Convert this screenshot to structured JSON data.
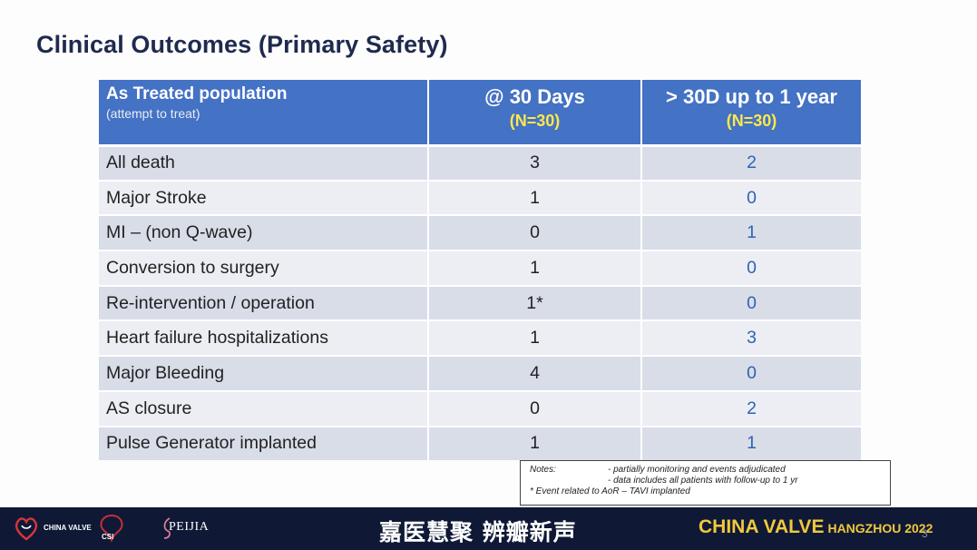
{
  "slide": {
    "title": "Clinical Outcomes (Primary Safety)",
    "page_number": "3"
  },
  "table": {
    "header": {
      "label_main": "As Treated population",
      "label_sub": "(attempt to treat)",
      "col_30d_main": "@ 30 Days",
      "col_30d_n": "(N=30)",
      "col_1y_main": "> 30D up to 1 year",
      "col_1y_n": "(N=30)"
    },
    "rows": [
      {
        "label": "All death",
        "d30": "3",
        "y1": "2"
      },
      {
        "label": "Major Stroke",
        "d30": "1",
        "y1": "0"
      },
      {
        "label": "MI – (non Q-wave)",
        "d30": "0",
        "y1": "1"
      },
      {
        "label": "Conversion to surgery",
        "d30": "1",
        "y1": "0"
      },
      {
        "label": "Re-intervention / operation",
        "d30": "1*",
        "y1": "0"
      },
      {
        "label": "Heart failure hospitalizations",
        "d30": "1",
        "y1": "3"
      },
      {
        "label": "Major Bleeding",
        "d30": "4",
        "y1": "0"
      },
      {
        "label": "AS closure",
        "d30": "0",
        "y1": "2"
      },
      {
        "label": "Pulse Generator implanted",
        "d30": "1",
        "y1": "1"
      }
    ]
  },
  "notes": {
    "heading": "Notes:",
    "item1": "- partially monitoring and events adjudicated",
    "item2": "- data includes all patients with follow-up to 1 yr",
    "footnote": "* Event related to AoR – TAVI implanted"
  },
  "footer": {
    "logo1_text": "CHINA VALVE",
    "logo2_text": "CSI",
    "logo3_text": "PEIJIA",
    "slogan": "嘉医慧聚 辨瓣新声",
    "brand_main": "CHINA VALVE",
    "brand_city": "HANGZHOU 2022"
  },
  "colors": {
    "title": "#1f2a4e",
    "header_bg": "#4472c4",
    "header_n": "#ffe84a",
    "row_odd": "#d9dde8",
    "row_even": "#eceef4",
    "value_1y": "#2e63b5",
    "footer_bg": "#0f1936",
    "brand": "#f1c93b"
  }
}
